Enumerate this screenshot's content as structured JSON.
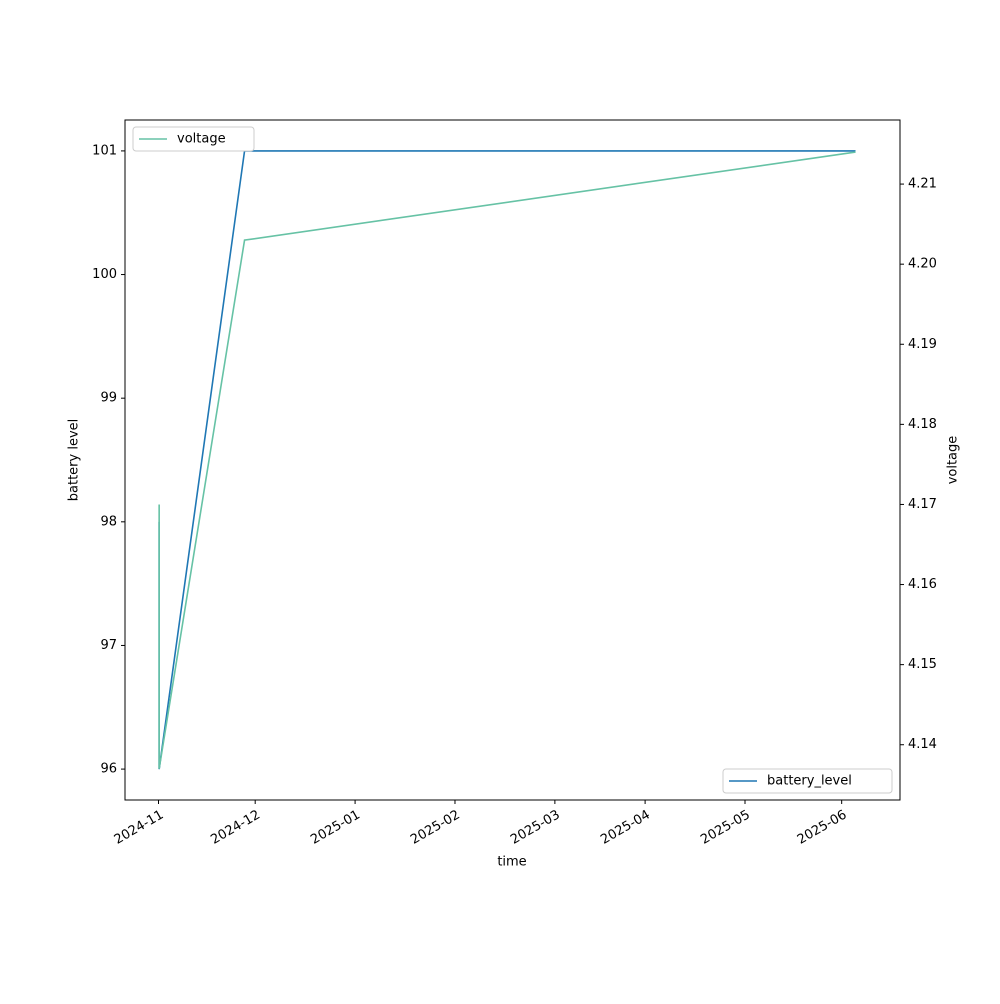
{
  "chart_data": {
    "type": "line",
    "x_label": "time",
    "y_label": "battery level",
    "y2_label": "voltage",
    "x": [
      0.2,
      0.2,
      26.7,
      216.3
    ],
    "series": [
      {
        "name": "battery_level",
        "color": "#1f77b4",
        "values": [
          98,
          96,
          101,
          101
        ],
        "legend": "lower right"
      },
      {
        "name": "voltage",
        "color": "#66c2a5",
        "axis": "y2",
        "values": [
          4.17,
          4.137,
          4.203,
          4.214
        ],
        "legend": "upper left"
      }
    ],
    "xlim": [
      -10.4,
      230.1
    ],
    "xticks": [
      {
        "value": 0,
        "label": "2024-11"
      },
      {
        "value": 30,
        "label": "2024-12"
      },
      {
        "value": 61,
        "label": "2025-01"
      },
      {
        "value": 92,
        "label": "2025-02"
      },
      {
        "value": 123,
        "label": "2025-03"
      },
      {
        "value": 151,
        "label": "2025-04"
      },
      {
        "value": 182,
        "label": "2025-05"
      },
      {
        "value": 212,
        "label": "2025-06"
      }
    ],
    "ylim": [
      95.75,
      101.25
    ],
    "yticks": [
      96,
      97,
      98,
      99,
      100,
      101
    ],
    "y2lim": [
      4.1331,
      4.218
    ],
    "y2ticks": [
      4.14,
      4.15,
      4.16,
      4.17,
      4.18,
      4.19,
      {
        "value": 4.2,
        "label": "4.20"
      },
      4.21
    ],
    "grid": false
  }
}
